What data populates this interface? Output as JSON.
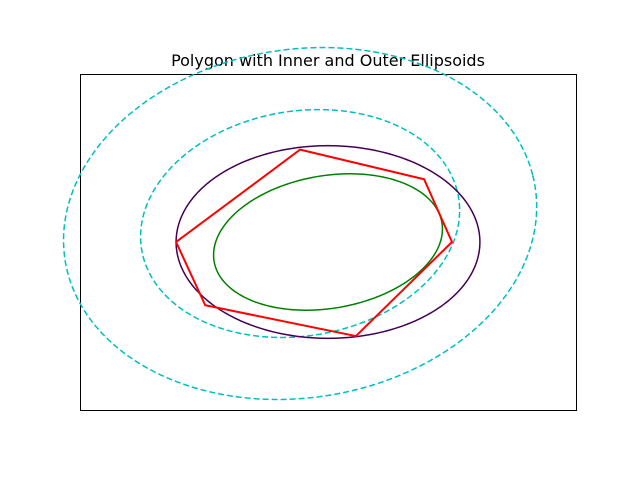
{
  "chart_data": {
    "type": "line",
    "title": "Polygon with Inner and Outer Ellipsoids",
    "xlabel": "",
    "ylabel": "",
    "xlim": [
      -4.0,
      4.0
    ],
    "ylim": [
      -3.0,
      3.0
    ],
    "grid": false,
    "legend": "none",
    "axis_ticks": false,
    "polygon": {
      "color": "#ff0000",
      "vertices": [
        [
          -0.45,
          1.65
        ],
        [
          1.55,
          1.12
        ],
        [
          2.0,
          0.0
        ],
        [
          0.45,
          -1.68
        ],
        [
          -1.98,
          -1.13
        ],
        [
          -2.45,
          0.0
        ]
      ]
    },
    "ellipses": [
      {
        "role": "outer",
        "color": "#440154",
        "style": "solid",
        "center": [
          0.0,
          0.0
        ],
        "a": 2.45,
        "b": 1.72,
        "angle_deg": 0.0
      },
      {
        "role": "inner",
        "color": "#008000",
        "style": "solid",
        "center": [
          0.0,
          0.0
        ],
        "a": 1.87,
        "b": 1.18,
        "angle_deg": 12.0
      },
      {
        "role": "offset",
        "color": "#00bfbf",
        "style": "dashed",
        "center": [
          -0.45,
          0.33
        ],
        "a": 2.6,
        "b": 2.0,
        "angle_deg": 13.0
      },
      {
        "role": "offset",
        "color": "#00bfbf",
        "style": "dashed",
        "center": [
          -0.45,
          0.33
        ],
        "a": 3.85,
        "b": 3.1,
        "angle_deg": 13.0
      }
    ]
  }
}
